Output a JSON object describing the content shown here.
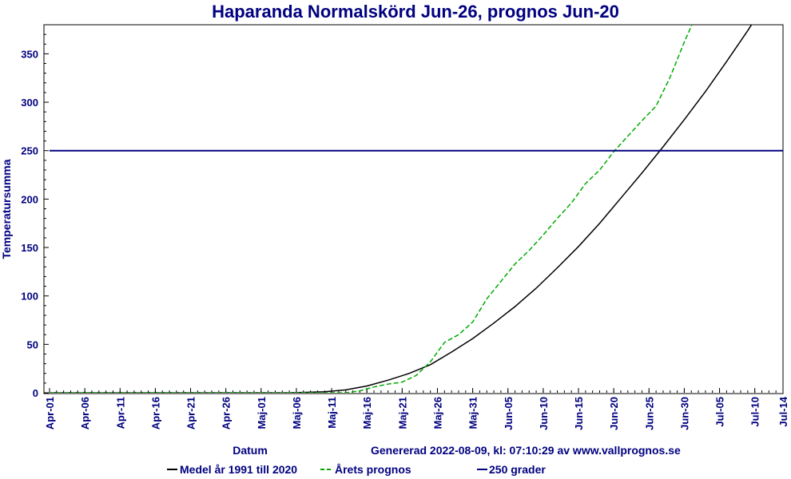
{
  "chart_data": {
    "type": "line",
    "title": "Haparanda Normalskörd Jun-26, prognos Jun-20",
    "xlabel": "Datum",
    "ylabel": "Temperatursumma",
    "x_range": [
      "2022-04-01",
      "2022-07-14"
    ],
    "ylim": [
      0,
      380
    ],
    "y_ticks": [
      0,
      50,
      100,
      150,
      200,
      250,
      300,
      350
    ],
    "x_tick_labels": [
      "Apr-01",
      "Apr-06",
      "Apr-11",
      "Apr-16",
      "Apr-21",
      "Apr-26",
      "Maj-01",
      "Maj-06",
      "Maj-11",
      "Maj-16",
      "Maj-21",
      "Maj-26",
      "Maj-31",
      "Jun-05",
      "Jun-10",
      "Jun-15",
      "Jun-20",
      "Jun-25",
      "Jun-30",
      "Jul-05",
      "Jul-10",
      "Jul-14"
    ],
    "x_tick_dates": [
      "2022-04-01",
      "2022-04-06",
      "2022-04-11",
      "2022-04-16",
      "2022-04-21",
      "2022-04-26",
      "2022-05-01",
      "2022-05-06",
      "2022-05-11",
      "2022-05-16",
      "2022-05-21",
      "2022-05-26",
      "2022-05-31",
      "2022-06-05",
      "2022-06-10",
      "2022-06-15",
      "2022-06-20",
      "2022-06-25",
      "2022-06-30",
      "2022-07-05",
      "2022-07-10",
      "2022-07-14"
    ],
    "generated_note": "Genererad 2022-08-09, kl: 07:10:29 av www.vallprognos.se",
    "legend_placement": "bottom",
    "series": [
      {
        "name": "Medel år 1991 till 2020",
        "color": "#000000",
        "style": "solid",
        "x": [
          "2022-04-01",
          "2022-05-05",
          "2022-05-10",
          "2022-05-13",
          "2022-05-16",
          "2022-05-19",
          "2022-05-22",
          "2022-05-25",
          "2022-05-28",
          "2022-05-31",
          "2022-06-03",
          "2022-06-06",
          "2022-06-09",
          "2022-06-12",
          "2022-06-15",
          "2022-06-18",
          "2022-06-21",
          "2022-06-24",
          "2022-06-27",
          "2022-06-30",
          "2022-07-03",
          "2022-07-06",
          "2022-07-09",
          "2022-07-12"
        ],
        "y": [
          0,
          0,
          1,
          3,
          7,
          13,
          20,
          29,
          42,
          56,
          72,
          89,
          108,
          129,
          151,
          175,
          201,
          227,
          254,
          282,
          311,
          342,
          374,
          408
        ]
      },
      {
        "name": "Årets prognos",
        "color": "#00aa00",
        "style": "dashed",
        "x": [
          "2022-04-01",
          "2022-05-13",
          "2022-05-15",
          "2022-05-17",
          "2022-05-19",
          "2022-05-21",
          "2022-05-23",
          "2022-05-25",
          "2022-05-27",
          "2022-05-29",
          "2022-05-31",
          "2022-06-02",
          "2022-06-04",
          "2022-06-06",
          "2022-06-08",
          "2022-06-10",
          "2022-06-12",
          "2022-06-14",
          "2022-06-16",
          "2022-06-18",
          "2022-06-20",
          "2022-06-22",
          "2022-06-24",
          "2022-06-26",
          "2022-06-28",
          "2022-06-30",
          "2022-07-02"
        ],
        "y": [
          0,
          0,
          2,
          6,
          9,
          11,
          18,
          32,
          52,
          60,
          73,
          97,
          115,
          133,
          147,
          163,
          180,
          196,
          216,
          230,
          249,
          265,
          281,
          296,
          326,
          362,
          395
        ]
      },
      {
        "name": "250 grader",
        "color": "#000080",
        "style": "solid",
        "x": [
          "2022-04-01",
          "2022-07-14"
        ],
        "y": [
          250,
          250
        ]
      }
    ]
  }
}
